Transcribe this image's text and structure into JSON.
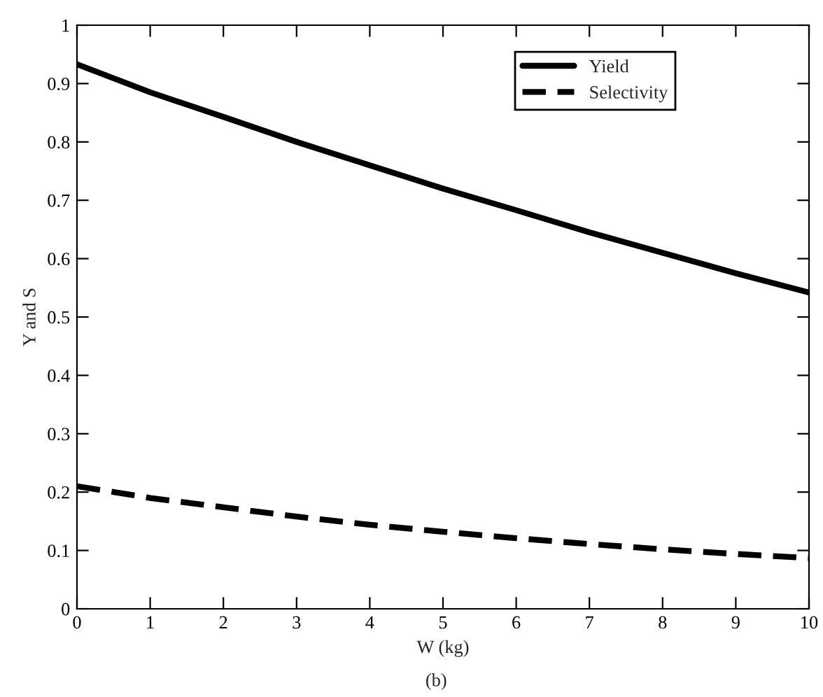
{
  "chart_data": {
    "type": "line",
    "xlabel": "W (kg)",
    "ylabel": "Y and S",
    "annotations": [
      "(b)"
    ],
    "x": [
      0,
      1,
      2,
      3,
      4,
      5,
      6,
      7,
      8,
      9,
      10
    ],
    "series": [
      {
        "name": "Yield",
        "color": "#000000",
        "line_style": "solid",
        "values": [
          0.933,
          0.885,
          0.843,
          0.8,
          0.76,
          0.72,
          0.683,
          0.645,
          0.61,
          0.575,
          0.542
        ]
      },
      {
        "name": "Selectivity",
        "color": "#000000",
        "line_style": "dashed",
        "values": [
          0.21,
          0.19,
          0.174,
          0.158,
          0.144,
          0.132,
          0.121,
          0.111,
          0.102,
          0.094,
          0.087
        ]
      }
    ],
    "xlim": [
      0,
      10
    ],
    "xticks": [
      0,
      1,
      2,
      3,
      4,
      5,
      6,
      7,
      8,
      9,
      10
    ],
    "ylim": [
      0,
      1
    ],
    "yticks": [
      0,
      0.1,
      0.2,
      0.3,
      0.4,
      0.5,
      0.6,
      0.7,
      0.8,
      0.9,
      1
    ],
    "grid": false,
    "legend": "top right",
    "marker": "none"
  }
}
